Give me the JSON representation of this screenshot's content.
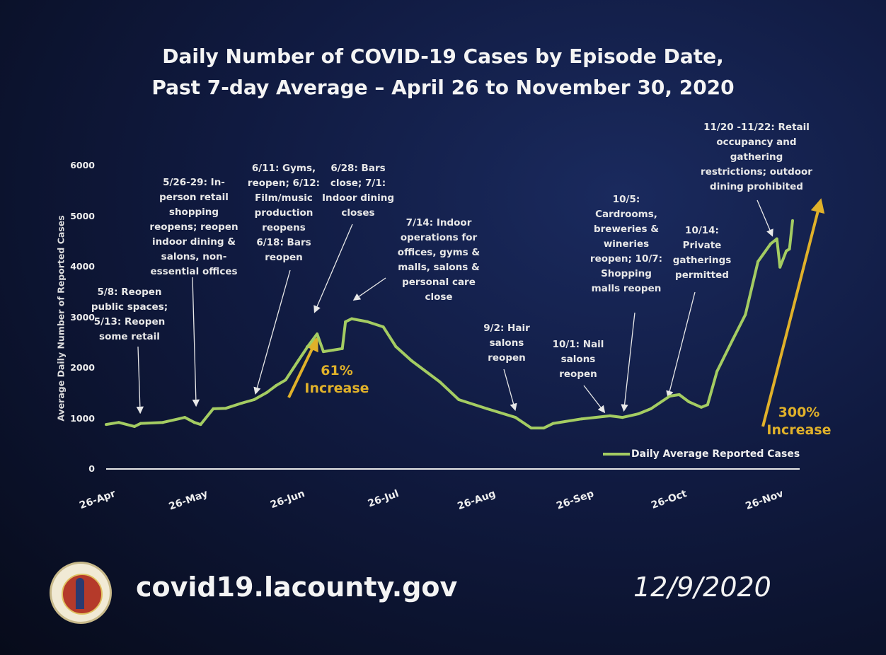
{
  "title_lines": [
    "Daily Number of COVID-19 Cases by Episode Date,",
    "Past 7-day Average – April 26 to November 30, 2020"
  ],
  "footer": {
    "url": "covid19.lacounty.gov",
    "date": "12/9/2020",
    "logo_text": "COUNTY OF LOS ANGELES CALIFORNIA"
  },
  "chart_data": {
    "type": "line",
    "title": "Daily Number of COVID-19 Cases by Episode Date, Past 7-day Average – April 26 to November 30, 2020",
    "xlabel": "",
    "ylabel": "Average Daily Number of Reported Cases",
    "ylim": [
      0,
      6000
    ],
    "yticks": [
      "0",
      "1000",
      "2000",
      "3000",
      "4000",
      "5000",
      "6000"
    ],
    "xticks": [
      "26-Apr",
      "26-May",
      "26-Jun",
      "26-Jul",
      "26-Aug",
      "26-Sep",
      "26-Oct",
      "26-Nov"
    ],
    "xlim": [
      "2020-04-26",
      "2020-11-30"
    ],
    "grid": false,
    "legend_position": "bottom-right",
    "colors": {
      "line": "#a4cc62",
      "increase": "#e0b12a",
      "annotation": "#e8e8e8"
    },
    "series": [
      {
        "name": "Daily Average Reported Cases",
        "x": [
          "2020-04-26",
          "2020-04-30",
          "2020-05-05",
          "2020-05-07",
          "2020-05-14",
          "2020-05-21",
          "2020-05-24",
          "2020-05-26",
          "2020-05-30",
          "2020-06-03",
          "2020-06-08",
          "2020-06-12",
          "2020-06-16",
          "2020-06-19",
          "2020-06-22",
          "2020-06-26",
          "2020-06-29",
          "2020-07-02",
          "2020-07-04",
          "2020-07-07",
          "2020-07-10",
          "2020-07-11",
          "2020-07-13",
          "2020-07-18",
          "2020-07-23",
          "2020-07-27",
          "2020-08-01",
          "2020-08-10",
          "2020-08-16",
          "2020-08-25",
          "2020-09-03",
          "2020-09-08",
          "2020-09-12",
          "2020-09-15",
          "2020-09-24",
          "2020-10-03",
          "2020-10-07",
          "2020-10-12",
          "2020-10-16",
          "2020-10-22",
          "2020-10-25",
          "2020-10-28",
          "2020-11-01",
          "2020-11-03",
          "2020-11-06",
          "2020-11-11",
          "2020-11-15",
          "2020-11-19",
          "2020-11-23",
          "2020-11-25",
          "2020-11-26",
          "2020-11-28",
          "2020-11-29",
          "2020-11-30"
        ],
        "y": [
          880,
          920,
          840,
          900,
          920,
          1020,
          920,
          880,
          1190,
          1200,
          1300,
          1370,
          1510,
          1650,
          1760,
          2140,
          2420,
          2670,
          2320,
          2350,
          2380,
          2910,
          2970,
          2910,
          2810,
          2420,
          2140,
          1720,
          1370,
          1190,
          1020,
          810,
          810,
          900,
          990,
          1050,
          1020,
          1090,
          1190,
          1440,
          1470,
          1330,
          1220,
          1270,
          1930,
          2560,
          3050,
          4100,
          4450,
          4550,
          3990,
          4310,
          4350,
          4910
        ]
      }
    ],
    "annotations": [
      {
        "text": "5/8: Reopen\npublic spaces;\n5/13: Reopen\nsome retail"
      },
      {
        "text": "5/26-29: In-\nperson retail\nshopping\nreopens; reopen\nindoor dining &\nsalons, non-\nessential offices"
      },
      {
        "text": "6/11: Gyms,\nreopen; 6/12:\nFilm/music\nproduction\nreopens\n6/18: Bars\nreopen"
      },
      {
        "text": "6/28: Bars\nclose; 7/1:\nIndoor dining\ncloses"
      },
      {
        "text": "7/14: Indoor\noperations for\noffices, gyms &\nmalls, salons &\npersonal care\nclose"
      },
      {
        "text": "9/2: Hair\nsalons\nreopen"
      },
      {
        "text": "10/1: Nail\nsalons\nreopen"
      },
      {
        "text": "10/5:\nCardrooms,\nbreweries &\nwineries\nreopen; 10/7:\nShopping\nmalls reopen"
      },
      {
        "text": "10/14:\nPrivate\ngatherings\npermitted"
      },
      {
        "text": "11/20 -11/22: Retail\noccupancy and\ngathering\nrestrictions; outdoor\ndining prohibited"
      }
    ],
    "increase_labels": [
      {
        "text": "61%\nIncrease"
      },
      {
        "text": "300%\nIncrease"
      }
    ]
  }
}
